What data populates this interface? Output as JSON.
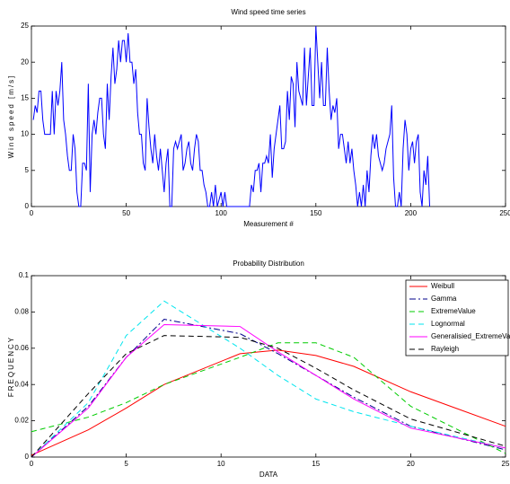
{
  "chart_data": [
    {
      "type": "line",
      "title": "Wind speed time series",
      "xlabel": "Measurement #",
      "ylabel": "Wind speed [m/s]",
      "x": [
        1,
        2,
        3,
        4,
        5,
        6,
        7,
        8,
        9,
        10,
        11,
        12,
        13,
        14,
        15,
        16,
        17,
        18,
        19,
        20,
        21,
        22,
        23,
        24,
        25,
        26,
        27,
        28,
        29,
        30,
        31,
        32,
        33,
        34,
        35,
        36,
        37,
        38,
        39,
        40,
        41,
        42,
        43,
        44,
        45,
        46,
        47,
        48,
        49,
        50,
        51,
        52,
        53,
        54,
        55,
        56,
        57,
        58,
        59,
        60,
        61,
        62,
        63,
        64,
        65,
        66,
        67,
        68,
        69,
        70,
        71,
        72,
        73,
        74,
        75,
        76,
        77,
        78,
        79,
        80,
        81,
        82,
        83,
        84,
        85,
        86,
        87,
        88,
        89,
        90,
        91,
        92,
        93,
        94,
        95,
        96,
        97,
        98,
        99,
        100,
        101,
        102,
        103,
        104,
        105,
        106,
        107,
        108,
        109,
        110,
        111,
        112,
        113,
        114,
        115,
        116,
        117,
        118,
        119,
        120,
        121,
        122,
        123,
        124,
        125,
        126,
        127,
        128,
        129,
        130,
        131,
        132,
        133,
        134,
        135,
        136,
        137,
        138,
        139,
        140,
        141,
        142,
        143,
        144,
        145,
        146,
        147,
        148,
        149,
        150,
        151,
        152,
        153,
        154,
        155,
        156,
        157,
        158,
        159,
        160,
        161,
        162,
        163,
        164,
        165,
        166,
        167,
        168,
        169,
        170,
        171,
        172,
        173,
        174,
        175,
        176,
        177,
        178,
        179,
        180,
        181,
        182,
        183,
        184,
        185,
        186,
        187,
        188,
        189,
        190,
        191,
        192,
        193,
        194,
        195,
        196,
        197,
        198,
        199,
        200,
        201,
        202,
        203,
        204,
        205,
        206,
        207,
        208,
        209,
        210
      ],
      "series": [
        {
          "name": "Wind speed",
          "color": "#0000ff",
          "style": "solid",
          "values": [
            12,
            14,
            13,
            16,
            16,
            12,
            10,
            10,
            10,
            10,
            16,
            10,
            16,
            14,
            16,
            20,
            12,
            10,
            7,
            5,
            5,
            10,
            8,
            2,
            0,
            0,
            6,
            6,
            5,
            17,
            2,
            10,
            12,
            10,
            13,
            15,
            15,
            10,
            8,
            17,
            12,
            18,
            22,
            17,
            19,
            23,
            20,
            23,
            23,
            20,
            24,
            20,
            20,
            17,
            19,
            13,
            10,
            10,
            6,
            5,
            15,
            11,
            8,
            6,
            10,
            7,
            5,
            8,
            5,
            2,
            6,
            8,
            0,
            0,
            8,
            9,
            8,
            9,
            10,
            5,
            6,
            8,
            9,
            6,
            5,
            8,
            10,
            9,
            5,
            5,
            3,
            2,
            0,
            0,
            2,
            0,
            3,
            0,
            1,
            2,
            0,
            2,
            0,
            0,
            0,
            0,
            0,
            0,
            0,
            0,
            0,
            0,
            0,
            0,
            0,
            3,
            2,
            5,
            5,
            6,
            2,
            6,
            6,
            7,
            6,
            10,
            4,
            8,
            10,
            12,
            14,
            8,
            8,
            9,
            16,
            12,
            18,
            17,
            11,
            20,
            16,
            15,
            14,
            22,
            14,
            18,
            22,
            14,
            14,
            25,
            20,
            15,
            20,
            14,
            14,
            22,
            16,
            12,
            14,
            13,
            15,
            8,
            10,
            10,
            8,
            6,
            9,
            6,
            8,
            5,
            3,
            0,
            2,
            0,
            3,
            0,
            5,
            2,
            7,
            10,
            8,
            10,
            7,
            6,
            5,
            6,
            8,
            9,
            10,
            14,
            4,
            0,
            0,
            2,
            0,
            8,
            12,
            10,
            5,
            8,
            9,
            6,
            9,
            10,
            2,
            0,
            5,
            3,
            7,
            0
          ]
        }
      ],
      "xlim": [
        0,
        250
      ],
      "xticks": [
        0,
        50,
        100,
        150,
        200,
        250
      ],
      "ylim": [
        0,
        25
      ],
      "yticks": [
        0,
        5,
        10,
        15,
        20,
        25
      ]
    },
    {
      "type": "line",
      "title": "Probability Distribution",
      "xlabel": "DATA",
      "ylabel": "FREQUENCY",
      "x": [
        0,
        3,
        5,
        7,
        11,
        13,
        15,
        17,
        20,
        25
      ],
      "series": [
        {
          "name": "Weibull",
          "color": "#ff0000",
          "style": "solid",
          "values": [
            0.001,
            0.015,
            0.027,
            0.04,
            0.057,
            0.059,
            0.056,
            0.05,
            0.036,
            0.017
          ]
        },
        {
          "name": "Gamma",
          "color": "#00008b",
          "style": "dashdot",
          "values": [
            0,
            0.028,
            0.055,
            0.076,
            0.068,
            0.057,
            0.045,
            0.033,
            0.017,
            0.004
          ]
        },
        {
          "name": "ExtremeValue",
          "color": "#00cc00",
          "style": "dashed",
          "values": [
            0.014,
            0.022,
            0.03,
            0.04,
            0.055,
            0.063,
            0.063,
            0.055,
            0.028,
            0.002
          ]
        },
        {
          "name": "Lognormal",
          "color": "#00e5ee",
          "style": "dashed",
          "values": [
            0,
            0.03,
            0.067,
            0.086,
            0.06,
            0.045,
            0.032,
            0.025,
            0.017,
            0.005
          ]
        },
        {
          "name": "Generalisied_ExtremeValue",
          "color": "#ff00ff",
          "style": "solid",
          "values": [
            0,
            0.027,
            0.055,
            0.073,
            0.072,
            0.058,
            0.045,
            0.032,
            0.016,
            0.005
          ]
        },
        {
          "name": "Rayleigh",
          "color": "#000000",
          "style": "dashed",
          "values": [
            0,
            0.035,
            0.057,
            0.067,
            0.066,
            0.06,
            0.049,
            0.037,
            0.021,
            0.006
          ]
        }
      ],
      "xlim": [
        0,
        25
      ],
      "xticks": [
        0,
        5,
        10,
        15,
        20,
        25
      ],
      "ylim": [
        0,
        0.1
      ],
      "yticks": [
        0,
        0.02,
        0.04,
        0.06,
        0.08,
        0.1
      ],
      "legend": "upper right"
    }
  ]
}
